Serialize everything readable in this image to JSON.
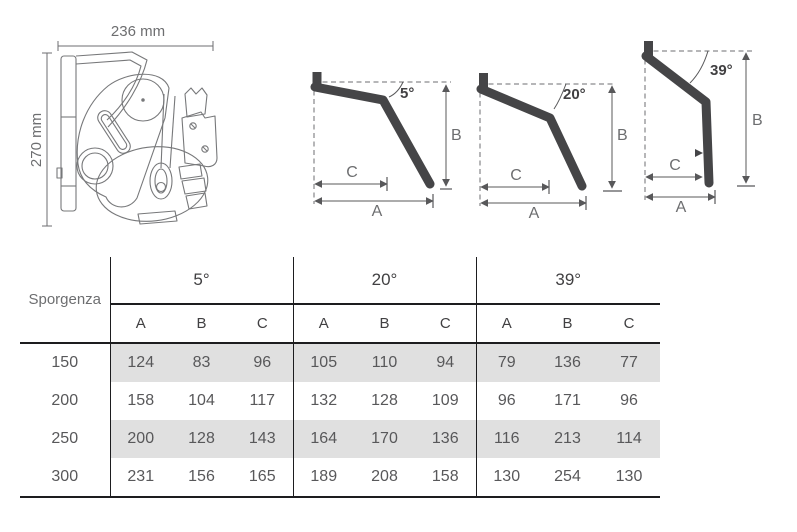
{
  "figure": {
    "bracket": {
      "width_label": "236 mm",
      "height_label": "270 mm"
    },
    "angle_diagrams": [
      {
        "angle_label": "5°",
        "label_a": "A",
        "label_b": "B",
        "label_c": "C"
      },
      {
        "angle_label": "20°",
        "label_a": "A",
        "label_b": "B",
        "label_c": "C"
      },
      {
        "angle_label": "39°",
        "label_a": "A",
        "label_b": "B",
        "label_c": "C"
      }
    ]
  },
  "table": {
    "row_header_label": "Sporgenza",
    "groups": [
      {
        "label": "5°",
        "columns": [
          "A",
          "B",
          "C"
        ]
      },
      {
        "label": "20°",
        "columns": [
          "A",
          "B",
          "C"
        ]
      },
      {
        "label": "39°",
        "columns": [
          "A",
          "B",
          "C"
        ]
      }
    ],
    "rows": [
      {
        "sporgenza": "150",
        "values": [
          [
            124,
            83,
            96
          ],
          [
            105,
            110,
            94
          ],
          [
            79,
            136,
            77
          ]
        ]
      },
      {
        "sporgenza": "200",
        "values": [
          [
            158,
            104,
            117
          ],
          [
            132,
            128,
            109
          ],
          [
            96,
            171,
            96
          ]
        ]
      },
      {
        "sporgenza": "250",
        "values": [
          [
            200,
            128,
            143
          ],
          [
            164,
            170,
            136
          ],
          [
            116,
            213,
            114
          ]
        ]
      },
      {
        "sporgenza": "300",
        "values": [
          [
            231,
            156,
            165
          ],
          [
            189,
            208,
            158
          ],
          [
            130,
            254,
            130
          ]
        ]
      }
    ]
  },
  "colors": {
    "arm": "#454547",
    "dimension_lines": "#58585a",
    "muted_text": "#6d6e70",
    "header_text": "#414042",
    "row_stripe": "#e0e0e0",
    "table_border": "#1d1d1f"
  }
}
